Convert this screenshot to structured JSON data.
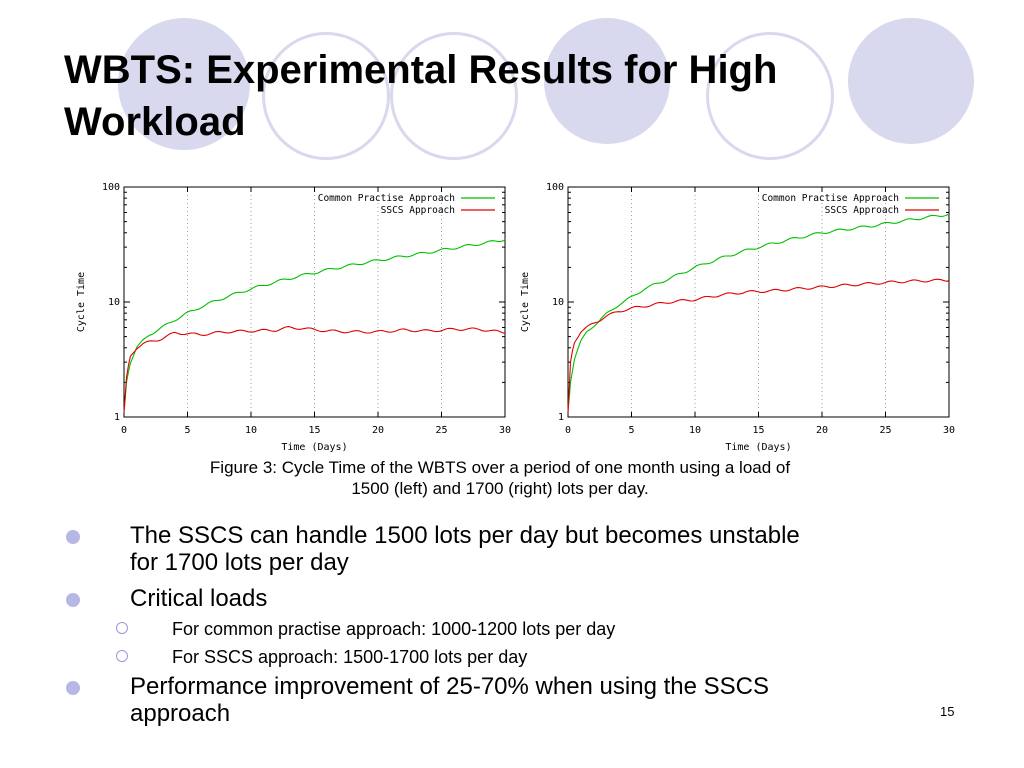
{
  "slide": {
    "title": "WBTS: Experimental Results for High Workload",
    "page_number": "15",
    "caption_line1": "Figure 3: Cycle Time of the WBTS over a period of one month using a load of",
    "caption_line2": "1500 (left) and 1700 (right) lots per day."
  },
  "bullets": [
    {
      "level": 1,
      "text_line1": "The SSCS can handle 1500 lots per day but becomes unstable",
      "text_line2": "for 1700 lots per day"
    },
    {
      "level": 1,
      "text_line1": "Critical loads",
      "text_line2": ""
    },
    {
      "level": 2,
      "text_line1": "For common practise approach: 1000-1200 lots per day",
      "text_line2": ""
    },
    {
      "level": 2,
      "text_line1": "For SSCS approach: 1500-1700 lots per day",
      "text_line2": ""
    },
    {
      "level": 1,
      "text_line1": "Performance improvement of 25-70% when using the SSCS",
      "text_line2": "approach"
    }
  ],
  "colors": {
    "decor_circle": "#d8d8ee",
    "bullet": "#b7b7e6",
    "series_common": "#00c000",
    "series_sscs": "#e00000"
  },
  "chart_data": [
    {
      "type": "line",
      "xlabel": "Time (Days)",
      "ylabel": "Cycle Time",
      "xlim": [
        0,
        30
      ],
      "ylim": [
        1,
        100
      ],
      "yscale": "log",
      "x_ticks": [
        "0",
        "5",
        "10",
        "15",
        "20",
        "25",
        "30"
      ],
      "y_ticks": [
        "1",
        "10",
        "100"
      ],
      "grid": "vertical dotted",
      "legend_position": "top-right",
      "series": [
        {
          "name": "Common Practise Approach",
          "color": "#00c000",
          "x": [
            0,
            0.2,
            0.5,
            1,
            1.5,
            2,
            3,
            4,
            5,
            6,
            7,
            8,
            9,
            10,
            12,
            14,
            16,
            18,
            20,
            22,
            24,
            26,
            28,
            30
          ],
          "y": [
            1.1,
            2,
            3,
            4,
            4.6,
            5.2,
            6,
            7,
            8,
            9,
            10,
            11,
            12,
            13,
            15,
            17,
            19,
            21,
            23,
            25,
            27,
            29.5,
            32,
            35
          ]
        },
        {
          "name": "SSCS Approach",
          "color": "#e00000",
          "x": [
            0,
            0.2,
            0.5,
            1,
            1.5,
            2,
            3,
            4,
            5,
            6,
            8,
            10,
            12,
            13,
            14,
            16,
            18,
            20,
            22,
            24,
            26,
            28,
            30
          ],
          "y": [
            1.1,
            2.2,
            3.4,
            4,
            4.3,
            4.5,
            4.8,
            5.4,
            5.3,
            5.2,
            5.5,
            5.6,
            5.7,
            6,
            5.9,
            5.6,
            5.5,
            5.5,
            5.7,
            5.6,
            5.8,
            5.8,
            5.4
          ]
        }
      ]
    },
    {
      "type": "line",
      "xlabel": "Time (Days)",
      "ylabel": "Cycle Time",
      "xlim": [
        0,
        30
      ],
      "ylim": [
        1,
        100
      ],
      "yscale": "log",
      "x_ticks": [
        "0",
        "5",
        "10",
        "15",
        "20",
        "25",
        "30"
      ],
      "y_ticks": [
        "1",
        "10",
        "100"
      ],
      "grid": "vertical dotted",
      "legend_position": "top-right",
      "series": [
        {
          "name": "Common Practise Approach",
          "color": "#00c000",
          "x": [
            0,
            0.2,
            0.5,
            1,
            1.5,
            2,
            3,
            4,
            5,
            6,
            8,
            10,
            12,
            14,
            16,
            18,
            20,
            22,
            24,
            26,
            28,
            30
          ],
          "y": [
            1.1,
            2,
            3.2,
            4.5,
            5.5,
            6.2,
            7.8,
            9.5,
            11,
            13,
            16,
            20,
            24,
            28,
            32,
            36,
            40,
            43,
            46,
            50,
            54,
            58
          ]
        },
        {
          "name": "SSCS Approach",
          "color": "#e00000",
          "x": [
            0,
            0.2,
            0.5,
            1,
            1.5,
            2,
            3,
            4,
            5,
            6,
            8,
            10,
            12,
            14,
            16,
            18,
            20,
            22,
            24,
            26,
            28,
            30
          ],
          "y": [
            1.1,
            3,
            4.5,
            5.5,
            6,
            6.5,
            7.5,
            8.3,
            8.8,
            9.2,
            10,
            10.5,
            11.5,
            12.2,
            12.5,
            13,
            13.5,
            14,
            14.5,
            15,
            15.3,
            15.5
          ]
        }
      ]
    }
  ]
}
